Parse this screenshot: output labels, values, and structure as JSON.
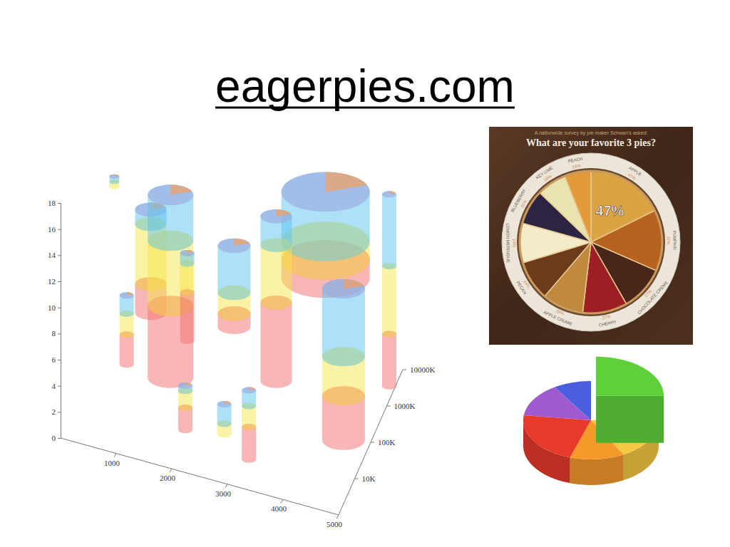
{
  "title": "eagerpies.com",
  "chart_data": [
    {
      "type": "bar3d",
      "stacked": true,
      "log": "z",
      "x": [
        100,
        1400,
        900,
        1700,
        900,
        2100,
        2800,
        3300,
        2400,
        3300,
        3900,
        4800,
        4900
      ],
      "z": [
        1000000,
        100000,
        316000,
        100000,
        10000,
        3160,
        3160,
        2000,
        316000,
        100000,
        1000000,
        10000,
        3160000
      ],
      "bases": [
        11.0,
        0.7,
        3.7,
        3.9,
        3.9,
        1.7,
        2.2,
        1.4,
        4.4,
        2.7,
        8.5,
        2.7,
        0
      ],
      "sizes": [
        0.7,
        3.2,
        2.2,
        1.0,
        1.0,
        1.0,
        1.0,
        1.0,
        2.3,
        2.2,
        6.2,
        3.0,
        1.0
      ],
      "series": [
        {
          "color": "#f26d6d",
          "values": [
            null,
            5.5,
            2.2,
            3.7,
            2.3,
            1.7,
            null,
            2.5,
            1.0,
            6.0,
            1.4,
            3.4,
            4.0
          ]
        },
        {
          "color": "#f5e54a",
          "values": [
            0.4,
            5.0,
            4.6,
            2.2,
            1.6,
            1.3,
            0.8,
            1.6,
            1.6,
            4.4,
            1.4,
            3.0,
            5.2
          ]
        },
        {
          "color": "#5bc3ef",
          "values": [
            0.4,
            3.5,
            1.1,
            0.8,
            1.4,
            0.4,
            1.5,
            1.2,
            3.6,
            2.2,
            3.8,
            5.2,
            5.5
          ]
        }
      ],
      "xlim": [
        0,
        5000
      ],
      "xticks": [
        1000,
        2000,
        3000,
        4000,
        5000
      ],
      "ylim": [
        0,
        18
      ],
      "yticks": [
        0,
        2,
        4,
        6,
        8,
        10,
        12,
        14,
        16,
        18
      ],
      "zlim": [
        1000,
        10000000
      ],
      "zticks": [
        {
          "value": 10000,
          "label": "10K"
        },
        {
          "value": 100000,
          "label": "100K"
        },
        {
          "value": 1000000,
          "label": "1000K"
        },
        {
          "value": 10000000,
          "label": "10000K"
        }
      ]
    },
    {
      "type": "pie",
      "title": "What are your favorite 3 pies?",
      "subtitle": "A nationwide survey by pie maker Schwan's asked:",
      "categories": [
        "APPLE",
        "PUMPKIN",
        "CHOCOLATE CREME",
        "CHERRY",
        "APPLE CRUMB",
        "PECAN",
        "LEMON MERINGUE",
        "BLUEBERRY",
        "KEY LIME",
        "PEACH"
      ],
      "values": [
        47,
        37,
        27,
        27,
        25,
        24,
        24,
        21,
        18,
        16
      ],
      "value_labels": [
        "47%",
        "37%",
        "27%",
        "27%",
        "25%",
        "24%",
        "24%",
        "21%",
        "18%",
        "16%"
      ],
      "colors": [
        "#d9a441",
        "#b8621f",
        "#4a2618",
        "#9c1f24",
        "#c08a3e",
        "#6e3a1c",
        "#f4ecc8",
        "#2c2440",
        "#e9e3b0",
        "#e39a3b"
      ],
      "data_labels": true
    },
    {
      "type": "pie3d",
      "values": [
        25,
        17,
        13,
        22,
        14,
        9
      ],
      "colors": [
        "#5fcf3a",
        "#f5c842",
        "#f59a2a",
        "#e83a2a",
        "#a05ad0",
        "#4a5fe0"
      ]
    }
  ]
}
